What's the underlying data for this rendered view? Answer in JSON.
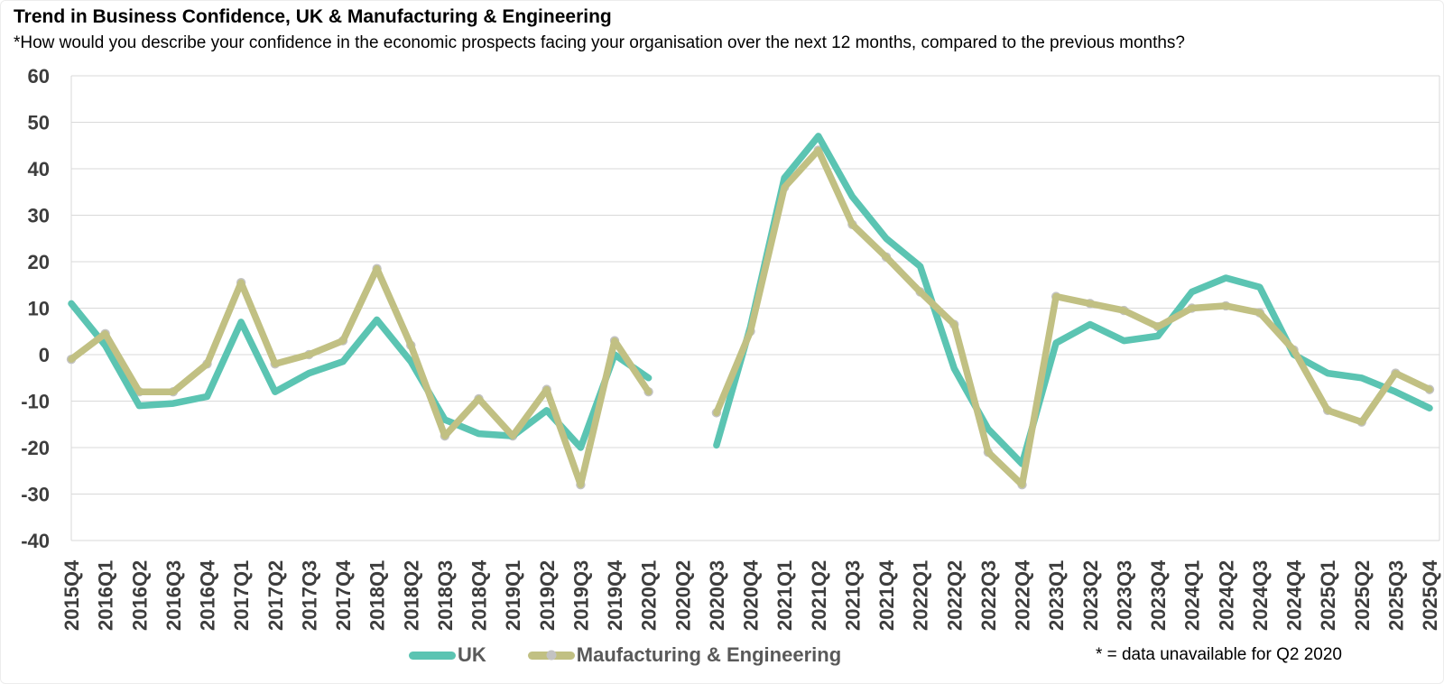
{
  "header": {
    "title": "Trend in Business Confidence, UK & Manufacturing & Engineering",
    "subtitle": "*How would you describe your confidence in the economic prospects facing your organisation over the next 12 months, compared to the previous months?"
  },
  "legend": {
    "items": [
      {
        "label": "UK",
        "color": "#5bc4b2"
      },
      {
        "label": "Maufacturing & Engineering",
        "color": "#c1c083",
        "marker_color": "#c3c3c3"
      }
    ]
  },
  "footnote": "* = data unavailable for Q2 2020",
  "colors": {
    "uk_line": "#5bc4b2",
    "manufacturing_line": "#c1c083",
    "marker": "#c3c3c3",
    "gridline": "#d9d9d9",
    "axis_label": "#3d3d3d"
  },
  "chart_data": {
    "type": "line",
    "title": "Trend in Business Confidence, UK & Manufacturing & Engineering",
    "xlabel": "",
    "ylabel": "",
    "ylim": [
      -40,
      60
    ],
    "ytick_step": 10,
    "grid": "horizontal",
    "legend_position": "bottom",
    "missing_data_note": "Q2 2020 has no data (gap in both lines)",
    "categories": [
      "2015Q4",
      "2016Q1",
      "2016Q2",
      "2016Q3",
      "2016Q4",
      "2017Q1",
      "2017Q2",
      "2017Q3",
      "2017Q4",
      "2018Q1",
      "2018Q2",
      "2018Q3",
      "2018Q4",
      "2019Q1",
      "2019Q2",
      "2019Q3",
      "2019Q4",
      "2020Q1",
      "2020Q2",
      "2020Q3",
      "2020Q4",
      "2021Q1",
      "2021Q2",
      "2021Q3",
      "2021Q4",
      "2022Q1",
      "2022Q2",
      "2022Q3",
      "2022Q4",
      "2023Q1",
      "2023Q2",
      "2023Q3",
      "2023Q4",
      "2024Q1",
      "2024Q2",
      "2024Q3",
      "2024Q4",
      "2025Q1",
      "2025Q2",
      "2025Q3",
      "2025Q4"
    ],
    "series": [
      {
        "name": "UK",
        "color": "#5bc4b2",
        "values": [
          11,
          2,
          -11,
          -10.5,
          -9,
          7,
          -8,
          -4,
          -1.5,
          7.5,
          -1.5,
          -14,
          -17,
          -17.5,
          -12,
          -20,
          0,
          -5,
          null,
          -19.5,
          6,
          38,
          47,
          34,
          25,
          19,
          -3,
          -16,
          -23.5,
          2.5,
          6.5,
          3,
          4,
          13.5,
          16.5,
          14.5,
          0,
          -4,
          -5,
          -8,
          -11.5
        ]
      },
      {
        "name": "Maufacturing & Engineering",
        "color": "#c1c083",
        "marker_color": "#c3c3c3",
        "values": [
          -1,
          4.5,
          -8,
          -8,
          -2,
          15.5,
          -2,
          0,
          3,
          18.5,
          2,
          -17.5,
          -9.5,
          -17.5,
          -7.5,
          -28,
          3,
          -8,
          null,
          -12.5,
          5,
          36,
          44,
          28,
          21,
          13.5,
          6.5,
          -21,
          -28,
          12.5,
          11,
          9.5,
          6,
          10,
          10.5,
          9,
          1,
          -12,
          -14.5,
          -4,
          -7.5
        ]
      }
    ]
  }
}
